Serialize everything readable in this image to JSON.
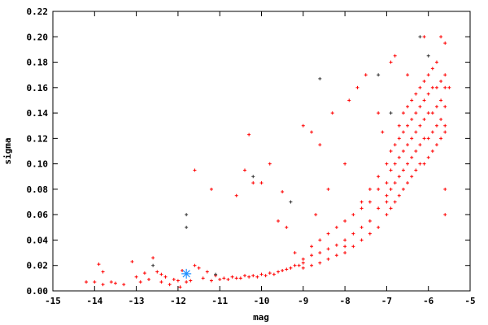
{
  "chart_data": {
    "type": "scatter",
    "title": "",
    "xlabel": "mag",
    "ylabel": "sigma",
    "xlim": [
      -15,
      -5
    ],
    "ylim": [
      0,
      0.22
    ],
    "grid": false,
    "x_ticks": [
      "-15",
      "-14",
      "-13",
      "-12",
      "-11",
      "-10",
      "-9",
      "-8",
      "-7",
      "-6",
      "-5"
    ],
    "y_ticks": [
      "0.00",
      "0.02",
      "0.04",
      "0.06",
      "0.08",
      "0.10",
      "0.12",
      "0.14",
      "0.16",
      "0.18",
      "0.20",
      "0.22"
    ],
    "colors": {
      "main": "#ff0000",
      "secondary": "#333333",
      "highlight": "#1e90ff"
    },
    "series": [
      {
        "marker": "plus",
        "color": "#ff0000",
        "points": [
          [
            -14.2,
            0.007
          ],
          [
            -14.0,
            0.007
          ],
          [
            -13.9,
            0.021
          ],
          [
            -13.8,
            0.015
          ],
          [
            -13.8,
            0.005
          ],
          [
            -13.6,
            0.007
          ],
          [
            -13.5,
            0.006
          ],
          [
            -13.3,
            0.005
          ],
          [
            -13.1,
            0.023
          ],
          [
            -13.0,
            0.011
          ],
          [
            -12.9,
            0.007
          ],
          [
            -12.8,
            0.014
          ],
          [
            -12.7,
            0.009
          ],
          [
            -12.6,
            0.026
          ],
          [
            -12.5,
            0.015
          ],
          [
            -12.4,
            0.013
          ],
          [
            -12.4,
            0.007
          ],
          [
            -12.3,
            0.011
          ],
          [
            -12.2,
            0.005
          ],
          [
            -12.1,
            0.009
          ],
          [
            -12.0,
            0.008
          ],
          [
            -11.95,
            0.003
          ],
          [
            -11.9,
            0.016
          ],
          [
            -11.8,
            0.007
          ],
          [
            -11.7,
            0.008
          ],
          [
            -11.6,
            0.02
          ],
          [
            -11.5,
            0.018
          ],
          [
            -11.4,
            0.01
          ],
          [
            -11.3,
            0.015
          ],
          [
            -11.2,
            0.008
          ],
          [
            -11.1,
            0.012
          ],
          [
            -11.0,
            0.009
          ],
          [
            -10.9,
            0.01
          ],
          [
            -10.8,
            0.009
          ],
          [
            -10.7,
            0.011
          ],
          [
            -10.6,
            0.01
          ],
          [
            -10.5,
            0.01
          ],
          [
            -10.4,
            0.012
          ],
          [
            -10.3,
            0.011
          ],
          [
            -10.2,
            0.012
          ],
          [
            -10.1,
            0.011
          ],
          [
            -10.0,
            0.013
          ],
          [
            -9.9,
            0.012
          ],
          [
            -9.8,
            0.014
          ],
          [
            -9.7,
            0.013
          ],
          [
            -9.6,
            0.015
          ],
          [
            -9.5,
            0.016
          ],
          [
            -9.4,
            0.017
          ],
          [
            -9.3,
            0.018
          ],
          [
            -9.2,
            0.02
          ],
          [
            -9.1,
            0.02
          ],
          [
            -9.0,
            0.022
          ],
          [
            -11.6,
            0.095
          ],
          [
            -11.2,
            0.08
          ],
          [
            -10.6,
            0.075
          ],
          [
            -10.4,
            0.095
          ],
          [
            -10.3,
            0.123
          ],
          [
            -10.2,
            0.085
          ],
          [
            -10.0,
            0.085
          ],
          [
            -9.8,
            0.1
          ],
          [
            -9.6,
            0.055
          ],
          [
            -9.5,
            0.078
          ],
          [
            -9.4,
            0.05
          ],
          [
            -9.2,
            0.03
          ],
          [
            -9.0,
            0.13
          ],
          [
            -8.8,
            0.125
          ],
          [
            -8.7,
            0.06
          ],
          [
            -8.6,
            0.115
          ],
          [
            -8.4,
            0.08
          ],
          [
            -8.3,
            0.14
          ],
          [
            -8.0,
            0.1
          ],
          [
            -7.9,
            0.15
          ],
          [
            -7.7,
            0.16
          ],
          [
            -7.5,
            0.17
          ],
          [
            -7.1,
            0.125
          ],
          [
            -7.2,
            0.14
          ],
          [
            -6.9,
            0.18
          ],
          [
            -6.8,
            0.185
          ],
          [
            -6.5,
            0.17
          ],
          [
            -6.1,
            0.2
          ],
          [
            -5.7,
            0.2
          ],
          [
            -5.6,
            0.195
          ],
          [
            -5.5,
            0.16
          ],
          [
            -5.6,
            0.125
          ],
          [
            -5.6,
            0.08
          ],
          [
            -5.6,
            0.06
          ],
          [
            -9.0,
            0.018
          ],
          [
            -9.0,
            0.025
          ],
          [
            -8.8,
            0.02
          ],
          [
            -8.8,
            0.028
          ],
          [
            -8.8,
            0.035
          ],
          [
            -8.6,
            0.022
          ],
          [
            -8.6,
            0.03
          ],
          [
            -8.6,
            0.04
          ],
          [
            -8.4,
            0.025
          ],
          [
            -8.4,
            0.033
          ],
          [
            -8.4,
            0.045
          ],
          [
            -8.2,
            0.028
          ],
          [
            -8.2,
            0.036
          ],
          [
            -8.2,
            0.05
          ],
          [
            -8.0,
            0.03
          ],
          [
            -8.0,
            0.04
          ],
          [
            -8.0,
            0.055
          ],
          [
            -8.0,
            0.035
          ],
          [
            -7.8,
            0.035
          ],
          [
            -7.8,
            0.045
          ],
          [
            -7.8,
            0.06
          ],
          [
            -7.6,
            0.04
          ],
          [
            -7.6,
            0.05
          ],
          [
            -7.6,
            0.065
          ],
          [
            -7.6,
            0.07
          ],
          [
            -7.4,
            0.045
          ],
          [
            -7.4,
            0.055
          ],
          [
            -7.4,
            0.07
          ],
          [
            -7.4,
            0.08
          ],
          [
            -7.2,
            0.05
          ],
          [
            -7.2,
            0.065
          ],
          [
            -7.2,
            0.08
          ],
          [
            -7.2,
            0.09
          ],
          [
            -7.0,
            0.06
          ],
          [
            -7.0,
            0.07
          ],
          [
            -7.0,
            0.085
          ],
          [
            -7.0,
            0.1
          ],
          [
            -7.0,
            0.075
          ],
          [
            -6.9,
            0.065
          ],
          [
            -6.9,
            0.08
          ],
          [
            -6.9,
            0.095
          ],
          [
            -6.9,
            0.11
          ],
          [
            -6.8,
            0.07
          ],
          [
            -6.8,
            0.085
          ],
          [
            -6.8,
            0.1
          ],
          [
            -6.8,
            0.115
          ],
          [
            -6.7,
            0.075
          ],
          [
            -6.7,
            0.09
          ],
          [
            -6.7,
            0.105
          ],
          [
            -6.7,
            0.12
          ],
          [
            -6.7,
            0.13
          ],
          [
            -6.6,
            0.08
          ],
          [
            -6.6,
            0.095
          ],
          [
            -6.6,
            0.11
          ],
          [
            -6.6,
            0.125
          ],
          [
            -6.6,
            0.14
          ],
          [
            -6.5,
            0.085
          ],
          [
            -6.5,
            0.1
          ],
          [
            -6.5,
            0.115
          ],
          [
            -6.5,
            0.13
          ],
          [
            -6.5,
            0.145
          ],
          [
            -6.4,
            0.09
          ],
          [
            -6.4,
            0.105
          ],
          [
            -6.4,
            0.12
          ],
          [
            -6.4,
            0.135
          ],
          [
            -6.4,
            0.15
          ],
          [
            -6.3,
            0.095
          ],
          [
            -6.3,
            0.11
          ],
          [
            -6.3,
            0.125
          ],
          [
            -6.3,
            0.14
          ],
          [
            -6.3,
            0.155
          ],
          [
            -6.2,
            0.1
          ],
          [
            -6.2,
            0.115
          ],
          [
            -6.2,
            0.13
          ],
          [
            -6.2,
            0.145
          ],
          [
            -6.2,
            0.16
          ],
          [
            -6.1,
            0.1
          ],
          [
            -6.1,
            0.12
          ],
          [
            -6.1,
            0.135
          ],
          [
            -6.1,
            0.15
          ],
          [
            -6.1,
            0.165
          ],
          [
            -6.0,
            0.105
          ],
          [
            -6.0,
            0.12
          ],
          [
            -6.0,
            0.14
          ],
          [
            -6.0,
            0.155
          ],
          [
            -6.0,
            0.17
          ],
          [
            -5.9,
            0.11
          ],
          [
            -5.9,
            0.125
          ],
          [
            -5.9,
            0.14
          ],
          [
            -5.9,
            0.16
          ],
          [
            -5.9,
            0.175
          ],
          [
            -5.8,
            0.115
          ],
          [
            -5.8,
            0.13
          ],
          [
            -5.8,
            0.145
          ],
          [
            -5.8,
            0.16
          ],
          [
            -5.8,
            0.18
          ],
          [
            -5.7,
            0.12
          ],
          [
            -5.7,
            0.135
          ],
          [
            -5.7,
            0.15
          ],
          [
            -5.7,
            0.165
          ],
          [
            -5.6,
            0.13
          ],
          [
            -5.6,
            0.145
          ],
          [
            -5.6,
            0.16
          ],
          [
            -5.6,
            0.17
          ]
        ]
      },
      {
        "marker": "plus",
        "color": "#333333",
        "points": [
          [
            -11.8,
            0.06
          ],
          [
            -11.8,
            0.05
          ],
          [
            -10.2,
            0.09
          ],
          [
            -9.3,
            0.07
          ],
          [
            -8.6,
            0.167
          ],
          [
            -7.2,
            0.17
          ],
          [
            -6.9,
            0.14
          ],
          [
            -6.0,
            0.185
          ],
          [
            -6.2,
            0.2
          ],
          [
            -12.6,
            0.02
          ],
          [
            -11.1,
            0.013
          ]
        ]
      },
      {
        "marker": "star",
        "color": "#1e90ff",
        "points": [
          [
            -11.8,
            0.0135
          ]
        ]
      }
    ]
  }
}
